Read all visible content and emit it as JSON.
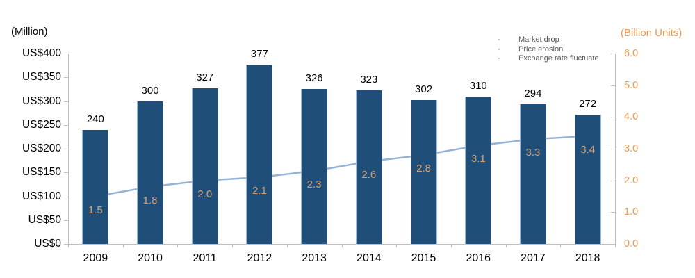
{
  "chart_data": {
    "type": "bar+line",
    "categories": [
      "2009",
      "2010",
      "2011",
      "2012",
      "2013",
      "2014",
      "2015",
      "2016",
      "2017",
      "2018"
    ],
    "series": [
      {
        "name": "revenue-us-million",
        "type": "bar",
        "axis": "left",
        "values": [
          240,
          300,
          327,
          377,
          326,
          323,
          302,
          310,
          294,
          272
        ],
        "labels": [
          "240",
          "300",
          "327",
          "377",
          "326",
          "323",
          "302",
          "310",
          "294",
          "272"
        ],
        "color": "#1F4E79",
        "edge_color": "#9BB4D6"
      },
      {
        "name": "units-billion",
        "type": "line",
        "axis": "right",
        "values": [
          1.5,
          1.8,
          2.0,
          2.1,
          2.3,
          2.6,
          2.8,
          3.1,
          3.3,
          3.4
        ],
        "labels": [
          "1.5",
          "1.8",
          "2.0",
          "2.1",
          "2.3",
          "2.6",
          "2.8",
          "3.1",
          "3.3",
          "3.4"
        ],
        "color": "#95B3D7",
        "marker_fill": "#9FBBDD",
        "marker_edge": "#7FA3CC",
        "label_color": "#D9A173"
      }
    ],
    "left_axis": {
      "title": "(Million)",
      "min": 0,
      "max": 400,
      "step": 50,
      "tick_labels": [
        "US$400",
        "US$350",
        "US$300",
        "US$250",
        "US$200",
        "US$150",
        "US$100",
        "US$50",
        "US$0"
      ],
      "color": "#000000"
    },
    "right_axis": {
      "title": "(Billion Units)",
      "min": 0,
      "max": 6,
      "step": 1,
      "tick_labels": [
        "6.0",
        "5.0",
        "4.0",
        "3.0",
        "2.0",
        "1.0",
        "0.0"
      ],
      "color": "#ED9B53"
    },
    "x_axis": {
      "tick_labels": [
        "2009",
        "2010",
        "2011",
        "2012",
        "2013",
        "2014",
        "2015",
        "2016",
        "2017",
        "2018"
      ]
    },
    "annotations": {
      "items": [
        "Market drop",
        "Price erosion",
        "Exchange rate fluctuate"
      ],
      "bullet": "·",
      "color": "#595959",
      "position": "top-right"
    },
    "axis_line_color": "#BFBFBF",
    "grid": false,
    "background": "#FFFFFF"
  }
}
